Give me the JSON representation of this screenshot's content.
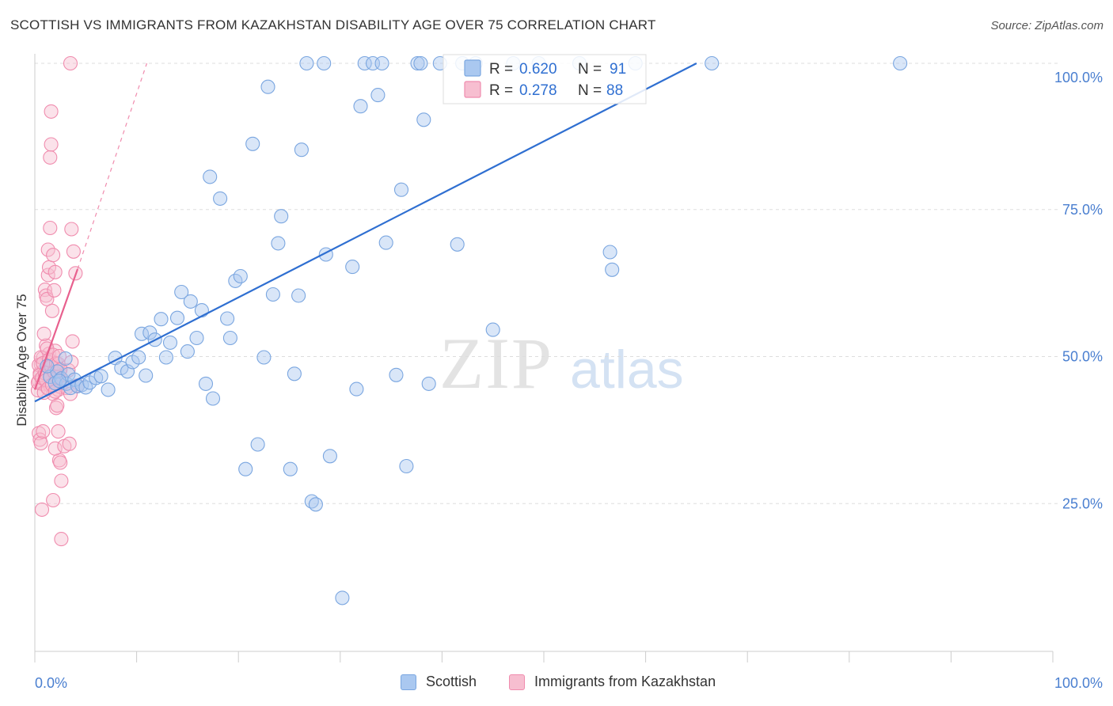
{
  "title": "SCOTTISH VS IMMIGRANTS FROM KAZAKHSTAN DISABILITY AGE OVER 75 CORRELATION CHART",
  "source": "Source: ZipAtlas.com",
  "watermark": {
    "zip": "ZIP",
    "atlas": "atlas"
  },
  "colors": {
    "blue": "#7aa6e0",
    "blue_fill": "#aac8f0",
    "blue_line": "#2f6fd1",
    "pink": "#f08cae",
    "pink_fill": "#f7bed0",
    "pink_line": "#e8608e",
    "axis_label": "#4a7fd0",
    "grid": "#dddddd"
  },
  "legend_top": [
    {
      "r_label": "R =",
      "r_value": "0.620",
      "n_label": "N =",
      "n_value": "91"
    },
    {
      "r_label": "R =",
      "r_value": "0.278",
      "n_label": "N =",
      "n_value": "88"
    }
  ],
  "legend_bottom": [
    "Scottish",
    "Immigrants from Kazakhstan"
  ],
  "chart_data": {
    "type": "scatter",
    "title": "SCOTTISH VS IMMIGRANTS FROM KAZAKHSTAN DISABILITY AGE OVER 75 CORRELATION CHART",
    "xlabel": "",
    "ylabel": "Disability Age Over 75",
    "xlim": [
      0,
      100
    ],
    "ylim": [
      0,
      103
    ],
    "x_tick_labels": [
      "0.0%",
      "100.0%"
    ],
    "y_ticks": [
      25,
      50,
      75,
      100
    ],
    "y_tick_labels": [
      "25.0%",
      "50.0%",
      "75.0%",
      "100.0%"
    ],
    "grid": true,
    "legend_position": "top-center",
    "series": [
      {
        "name": "Scottish",
        "r": 0.62,
        "n": 91,
        "trend": {
          "x0": 0.0,
          "y0": 42.5,
          "x1": 65.0,
          "y1": 100.0,
          "style": "solid"
        },
        "points": [
          [
            1.5,
            46.7
          ],
          [
            2.0,
            45.6
          ],
          [
            2.2,
            47.6
          ],
          [
            2.6,
            46.4
          ],
          [
            3.1,
            45.5
          ],
          [
            3.3,
            47.1
          ],
          [
            3.5,
            44.8
          ],
          [
            3.9,
            46.2
          ],
          [
            4.2,
            45.1
          ],
          [
            4.6,
            45.3
          ],
          [
            5.0,
            44.9
          ],
          [
            5.4,
            45.7
          ],
          [
            6.0,
            46.5
          ],
          [
            6.5,
            46.8
          ],
          [
            7.2,
            44.5
          ],
          [
            7.9,
            49.9
          ],
          [
            8.5,
            48.2
          ],
          [
            9.1,
            47.6
          ],
          [
            9.6,
            49.2
          ],
          [
            10.2,
            50.0
          ],
          [
            10.5,
            54.0
          ],
          [
            10.9,
            46.9
          ],
          [
            11.3,
            54.2
          ],
          [
            11.8,
            53.0
          ],
          [
            12.4,
            56.5
          ],
          [
            12.9,
            50.0
          ],
          [
            13.3,
            52.5
          ],
          [
            14.0,
            56.7
          ],
          [
            14.4,
            61.1
          ],
          [
            15.0,
            51.0
          ],
          [
            15.3,
            59.5
          ],
          [
            15.9,
            53.3
          ],
          [
            16.4,
            58.0
          ],
          [
            16.8,
            45.5
          ],
          [
            17.2,
            80.7
          ],
          [
            17.5,
            43.0
          ],
          [
            18.2,
            77.0
          ],
          [
            18.9,
            56.6
          ],
          [
            19.2,
            53.3
          ],
          [
            19.7,
            63.0
          ],
          [
            20.2,
            63.8
          ],
          [
            20.7,
            31.0
          ],
          [
            21.4,
            86.3
          ],
          [
            21.9,
            35.2
          ],
          [
            22.5,
            50.0
          ],
          [
            22.9,
            96.0
          ],
          [
            23.4,
            60.7
          ],
          [
            23.9,
            69.4
          ],
          [
            24.2,
            74.0
          ],
          [
            25.1,
            31.0
          ],
          [
            25.5,
            47.2
          ],
          [
            25.9,
            60.5
          ],
          [
            26.2,
            85.3
          ],
          [
            26.7,
            100.0
          ],
          [
            27.2,
            25.5
          ],
          [
            27.6,
            25.0
          ],
          [
            28.4,
            100.0
          ],
          [
            28.6,
            67.5
          ],
          [
            29.0,
            33.2
          ],
          [
            30.2,
            9.1
          ],
          [
            31.2,
            65.4
          ],
          [
            31.6,
            44.6
          ],
          [
            32.0,
            92.7
          ],
          [
            32.4,
            100.0
          ],
          [
            33.2,
            100.0
          ],
          [
            33.7,
            94.6
          ],
          [
            34.1,
            100.0
          ],
          [
            34.5,
            69.5
          ],
          [
            35.5,
            47.0
          ],
          [
            36.0,
            78.5
          ],
          [
            36.5,
            31.5
          ],
          [
            37.6,
            100.0
          ],
          [
            37.9,
            100.0
          ],
          [
            38.2,
            90.4
          ],
          [
            38.7,
            45.5
          ],
          [
            39.8,
            100.0
          ],
          [
            42.0,
            100.0
          ],
          [
            41.5,
            69.2
          ],
          [
            43.3,
            100.0
          ],
          [
            45.0,
            54.7
          ],
          [
            47.0,
            100.0
          ],
          [
            49.5,
            100.0
          ],
          [
            53.5,
            100.0
          ],
          [
            56.5,
            67.9
          ],
          [
            56.7,
            64.9
          ],
          [
            59.0,
            100.0
          ],
          [
            66.5,
            100.0
          ],
          [
            85.0,
            100.0
          ],
          [
            3.0,
            49.8
          ],
          [
            1.2,
            48.5
          ],
          [
            2.4,
            46.0
          ]
        ]
      },
      {
        "name": "Immigrants from Kazakhstan",
        "r": 0.278,
        "n": 88,
        "trend": {
          "x0": 0.0,
          "y0": 44.5,
          "x1": 4.2,
          "y1": 65.0,
          "style": "solid",
          "dash_to": {
            "x": 11.0,
            "y": 100.0
          }
        },
        "points": [
          [
            0.3,
            44.4
          ],
          [
            0.4,
            46.0
          ],
          [
            0.5,
            47.3
          ],
          [
            0.6,
            48.8
          ],
          [
            0.7,
            45.5
          ],
          [
            0.8,
            49.9
          ],
          [
            0.9,
            47.8
          ],
          [
            1.0,
            46.4
          ],
          [
            1.1,
            52.0
          ],
          [
            1.2,
            44.9
          ],
          [
            1.3,
            48.2
          ],
          [
            1.4,
            50.6
          ],
          [
            1.5,
            45.2
          ],
          [
            1.6,
            47.0
          ],
          [
            1.7,
            49.3
          ],
          [
            1.8,
            43.8
          ],
          [
            1.9,
            46.9
          ],
          [
            2.0,
            51.1
          ],
          [
            2.1,
            45.8
          ],
          [
            2.2,
            48.1
          ],
          [
            2.3,
            44.5
          ],
          [
            2.4,
            47.6
          ],
          [
            2.5,
            45.0
          ],
          [
            2.6,
            46.3
          ],
          [
            0.4,
            37.1
          ],
          [
            0.5,
            36.0
          ],
          [
            0.6,
            35.4
          ],
          [
            0.7,
            24.1
          ],
          [
            0.8,
            37.4
          ],
          [
            0.9,
            54.0
          ],
          [
            1.0,
            61.5
          ],
          [
            1.1,
            60.5
          ],
          [
            1.2,
            59.9
          ],
          [
            1.3,
            64.0
          ],
          [
            1.3,
            68.3
          ],
          [
            1.4,
            65.3
          ],
          [
            1.5,
            72.0
          ],
          [
            1.5,
            84.0
          ],
          [
            1.6,
            86.2
          ],
          [
            1.6,
            91.8
          ],
          [
            1.7,
            57.9
          ],
          [
            1.8,
            67.4
          ],
          [
            1.9,
            61.4
          ],
          [
            2.0,
            64.5
          ],
          [
            2.1,
            41.4
          ],
          [
            2.2,
            41.8
          ],
          [
            2.3,
            37.4
          ],
          [
            2.4,
            32.5
          ],
          [
            2.5,
            32.1
          ],
          [
            2.6,
            29.0
          ],
          [
            1.8,
            25.7
          ],
          [
            2.0,
            34.5
          ],
          [
            2.6,
            19.1
          ],
          [
            2.9,
            34.9
          ],
          [
            3.1,
            44.8
          ],
          [
            3.3,
            47.8
          ],
          [
            3.5,
            43.8
          ],
          [
            3.6,
            49.2
          ],
          [
            3.7,
            52.7
          ],
          [
            3.8,
            68.0
          ],
          [
            4.0,
            64.3
          ],
          [
            4.2,
            45.2
          ],
          [
            3.4,
            35.3
          ],
          [
            3.6,
            71.8
          ],
          [
            3.5,
            100.0
          ],
          [
            0.3,
            45.7
          ],
          [
            0.4,
            48.7
          ],
          [
            0.5,
            47.0
          ],
          [
            0.6,
            50.0
          ],
          [
            0.7,
            46.5
          ],
          [
            0.8,
            49.0
          ],
          [
            0.9,
            44.0
          ],
          [
            1.0,
            47.3
          ],
          [
            1.1,
            46.1
          ],
          [
            1.2,
            51.5
          ],
          [
            1.3,
            44.7
          ],
          [
            1.4,
            49.6
          ],
          [
            1.5,
            46.7
          ],
          [
            1.6,
            48.5
          ],
          [
            1.7,
            45.3
          ],
          [
            1.8,
            50.4
          ],
          [
            1.9,
            47.5
          ],
          [
            2.0,
            44.2
          ],
          [
            2.1,
            49.0
          ],
          [
            2.2,
            46.6
          ],
          [
            2.3,
            48.9
          ],
          [
            2.4,
            50.2
          ],
          [
            2.5,
            47.9
          ]
        ]
      }
    ]
  }
}
